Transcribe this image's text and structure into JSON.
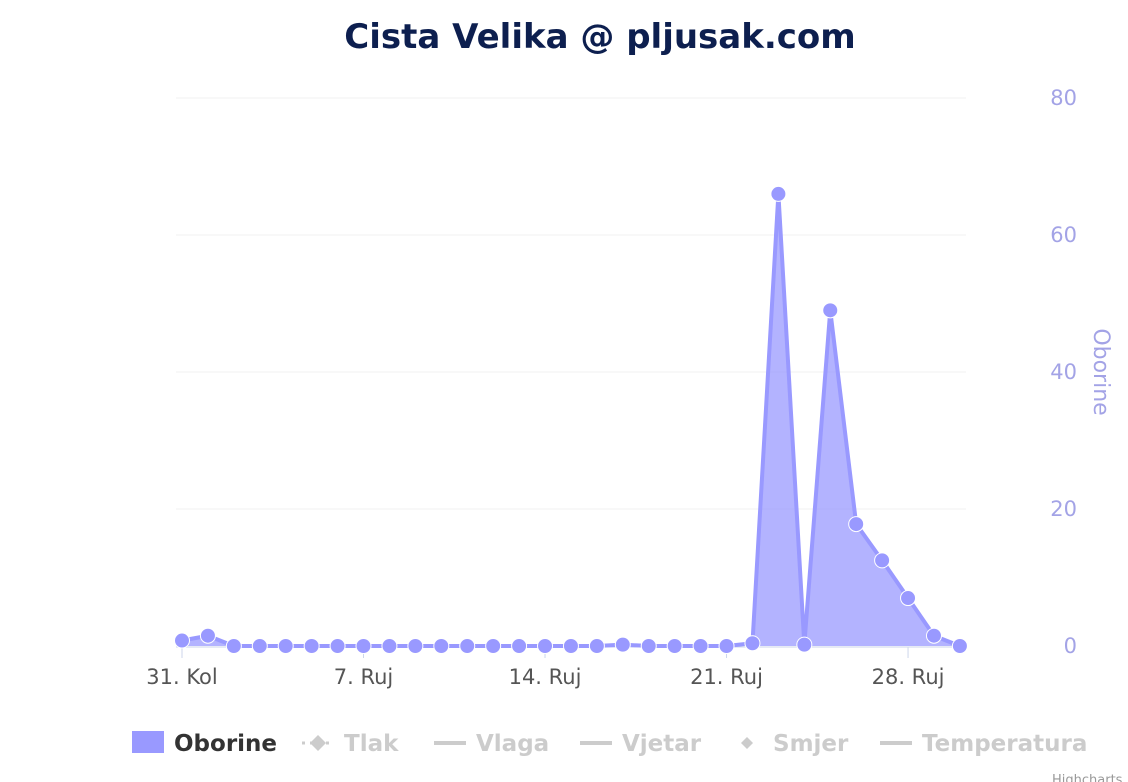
{
  "chart_data": {
    "type": "area",
    "title": "Cista Velika @ pljusak.com",
    "ylabel": "Oborine",
    "ylim": [
      0,
      80
    ],
    "yticks": [
      "0",
      "20",
      "40",
      "60",
      "80"
    ],
    "x_start": "2024-08-31",
    "xtick_labels": [
      "31. Kol",
      "7. Ruj",
      "14. Ruj",
      "21. Ruj",
      "28. Ruj"
    ],
    "series": [
      {
        "name": "Oborine",
        "color": "#9999ff",
        "dates": [
          "31.8.",
          "1.9.",
          "2.9.",
          "3.9.",
          "4.9.",
          "5.9.",
          "6.9.",
          "7.9.",
          "8.9.",
          "9.9.",
          "10.9.",
          "11.9.",
          "12.9.",
          "13.9.",
          "14.9.",
          "15.9.",
          "16.9.",
          "17.9.",
          "18.9.",
          "19.9.",
          "20.9.",
          "21.9.",
          "22.9.",
          "23.9.",
          "24.9.",
          "25.9.",
          "26.9.",
          "27.9.",
          "28.9.",
          "29.9.",
          "30.9."
        ],
        "values": [
          0.8,
          1.5,
          0,
          0,
          0,
          0,
          0,
          0,
          0,
          0,
          0,
          0,
          0,
          0,
          0,
          0,
          0,
          0.2,
          0,
          0,
          0,
          0,
          0.4,
          66,
          0.2,
          49,
          17.8,
          12.5,
          7,
          1.5,
          0
        ]
      }
    ],
    "legend": {
      "placement": "bottom",
      "items": [
        {
          "label": "Oborine",
          "enabled": true,
          "symbol": "area"
        },
        {
          "label": "Tlak",
          "enabled": false,
          "symbol": "diamond-dotted"
        },
        {
          "label": "Vlaga",
          "enabled": false,
          "symbol": "line"
        },
        {
          "label": "Vjetar",
          "enabled": false,
          "symbol": "line"
        },
        {
          "label": "Smjer",
          "enabled": false,
          "symbol": "diamond"
        },
        {
          "label": "Temperatura",
          "enabled": false,
          "symbol": "line"
        }
      ]
    },
    "credits": "Highcharts",
    "grid": true
  },
  "colors": {
    "series": "#9999ff",
    "disabled": "#cccccc",
    "title": "#0d1f4f",
    "axis_labels": "#a3a3e6"
  }
}
